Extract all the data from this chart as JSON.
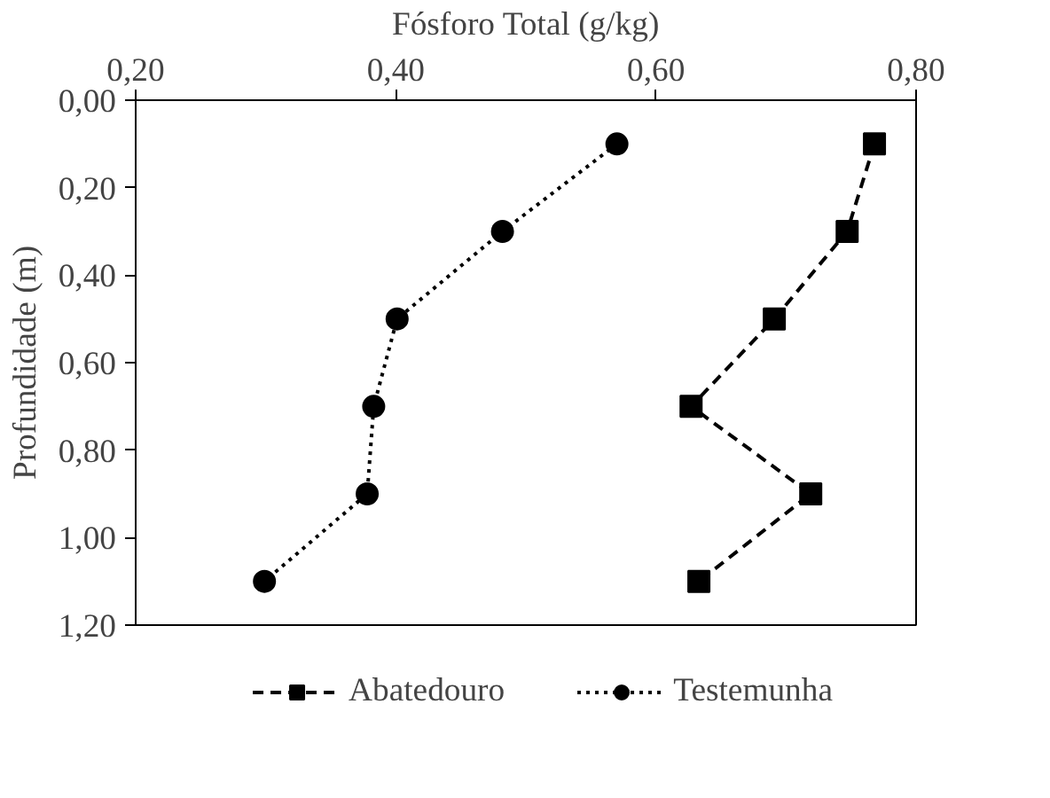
{
  "chart_data": {
    "type": "line",
    "xlabel": "Fósforo Total (g/kg)",
    "ylabel": "Profundidade (m)",
    "xlim": [
      0.2,
      0.8
    ],
    "xticks": [
      {
        "value": 0.2,
        "label": "0,20"
      },
      {
        "value": 0.4,
        "label": "0,40"
      },
      {
        "value": 0.6,
        "label": "0,60"
      },
      {
        "value": 0.8,
        "label": "0,80"
      }
    ],
    "ylim": [
      1.2,
      0.0
    ],
    "yticks": [
      {
        "value": 0.0,
        "label": "0,00"
      },
      {
        "value": 0.2,
        "label": "0,20"
      },
      {
        "value": 0.4,
        "label": "0,40"
      },
      {
        "value": 0.6,
        "label": "0,60"
      },
      {
        "value": 0.8,
        "label": "0,80"
      },
      {
        "value": 1.0,
        "label": "1,00"
      },
      {
        "value": 1.2,
        "label": "1,20"
      }
    ],
    "grid": false,
    "legend": "bottom",
    "series": [
      {
        "name": "Abatedouro",
        "color": "#000000",
        "marker": "square",
        "line_style": "dashed",
        "x": [
          0.768,
          0.747,
          0.691,
          0.627,
          0.719,
          0.633
        ],
        "values": [
          0.1,
          0.3,
          0.5,
          0.7,
          0.9,
          1.1
        ]
      },
      {
        "name": "Testemunha",
        "color": "#000000",
        "marker": "circle",
        "line_style": "dotted",
        "x": [
          0.57,
          0.482,
          0.401,
          0.383,
          0.378,
          0.299
        ],
        "values": [
          0.1,
          0.3,
          0.5,
          0.7,
          0.9,
          1.1
        ]
      }
    ]
  }
}
